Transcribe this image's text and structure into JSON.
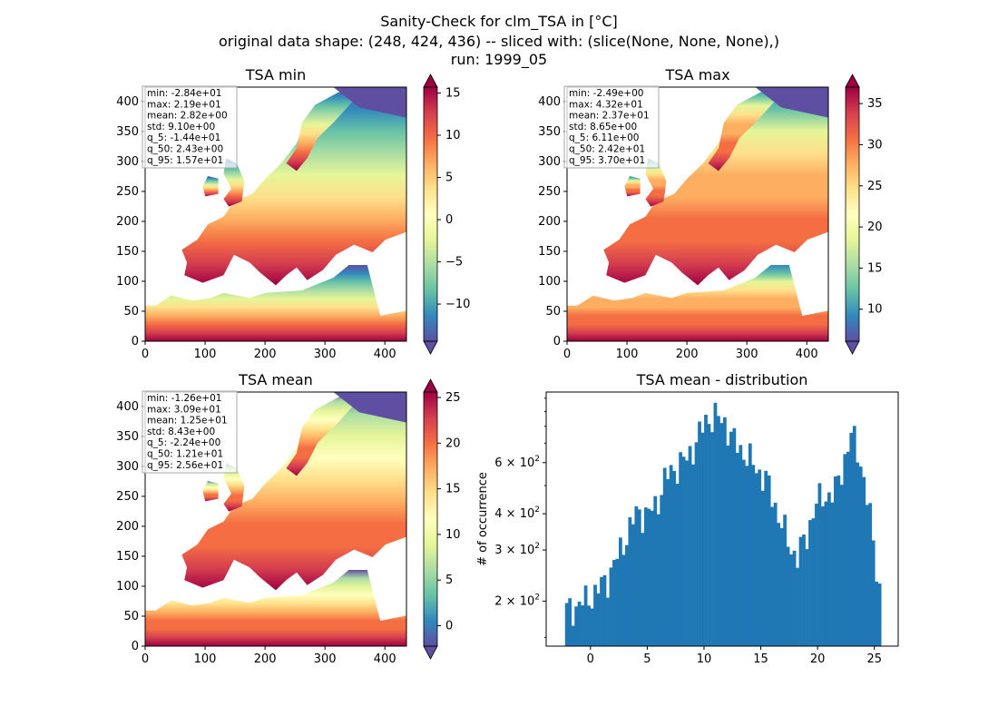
{
  "figure": {
    "title_lines": [
      "Sanity-Check for clm_TSA in [°C]",
      "original data shape: (248, 424, 436) -- sliced with: (slice(None, None, None),)",
      "run: 1999_05"
    ]
  },
  "colors": {
    "cmap": "Spectral_r",
    "hist_bar": "#1f77b4",
    "water_high_latitude": "#5e4fa2"
  },
  "chart_data": [
    {
      "type": "heatmap",
      "title": "TSA min",
      "xlim": [
        0,
        436
      ],
      "ylim": [
        0,
        424
      ],
      "xticks": [
        "0",
        "100",
        "200",
        "300",
        "400"
      ],
      "yticks": [
        "0",
        "50",
        "100",
        "150",
        "200",
        "250",
        "300",
        "350",
        "400"
      ],
      "colorbar": {
        "vmin": -14.4,
        "vmax": 15.7,
        "ticks": [
          "15",
          "10",
          "5",
          "0",
          "−5",
          "−10"
        ],
        "extend": "both"
      },
      "stats": [
        "min: -2.84e+01",
        "max: 2.19e+01",
        "mean: 2.82e+00",
        "std: 9.10e+00",
        "q_5: -1.44e+01",
        "q_50: 2.43e+00",
        "q_95: 1.57e+01"
      ]
    },
    {
      "type": "heatmap",
      "title": "TSA max",
      "xlim": [
        0,
        436
      ],
      "ylim": [
        0,
        424
      ],
      "xticks": [
        "0",
        "100",
        "200",
        "300",
        "400"
      ],
      "yticks": [
        "0",
        "50",
        "100",
        "150",
        "200",
        "250",
        "300",
        "350",
        "400"
      ],
      "colorbar": {
        "vmin": 6.11,
        "vmax": 37.0,
        "ticks": [
          "35",
          "30",
          "25",
          "20",
          "15",
          "10"
        ],
        "extend": "both"
      },
      "stats": [
        "min: -2.49e+00",
        "max: 4.32e+01",
        "mean: 2.37e+01",
        "std: 8.65e+00",
        "q_5: 6.11e+00",
        "q_50: 2.42e+01",
        "q_95: 3.70e+01"
      ]
    },
    {
      "type": "heatmap",
      "title": "TSA mean",
      "xlim": [
        0,
        436
      ],
      "ylim": [
        0,
        424
      ],
      "xticks": [
        "0",
        "100",
        "200",
        "300",
        "400"
      ],
      "yticks": [
        "0",
        "50",
        "100",
        "150",
        "200",
        "250",
        "300",
        "350",
        "400"
      ],
      "colorbar": {
        "vmin": -2.24,
        "vmax": 25.6,
        "ticks": [
          "25",
          "20",
          "15",
          "10",
          "5",
          "0"
        ],
        "extend": "both"
      },
      "stats": [
        "min: -1.26e+01",
        "max: 3.09e+01",
        "mean: 1.25e+01",
        "std: 8.43e+00",
        "q_5: -2.24e+00",
        "q_50: 1.21e+01",
        "q_95: 2.56e+01"
      ]
    },
    {
      "type": "bar",
      "title": "TSA mean - distribution",
      "ylabel": "# of occurrence",
      "yscale": "log",
      "xlim": [
        -3.9,
        27.1
      ],
      "ylim": [
        140,
        1050
      ],
      "xticks": [
        0,
        5,
        10,
        15,
        20,
        25
      ],
      "xtick_labels": [
        "0",
        "5",
        "10",
        "15",
        "20",
        "25"
      ],
      "yticks": [
        200,
        300,
        400,
        600
      ],
      "ytick_bases": [
        "2",
        "3",
        "4",
        "6"
      ],
      "ytick_power": "10",
      "ytick_exponent": "2",
      "bin_range": [
        -2.24,
        25.6
      ],
      "n_bins": 100,
      "profile": [
        [
          -2.24,
          185
        ],
        [
          -1.5,
          190
        ],
        [
          -0.5,
          200
        ],
        [
          0.5,
          215
        ],
        [
          1.5,
          240
        ],
        [
          2.5,
          290
        ],
        [
          3.5,
          360
        ],
        [
          4.2,
          410
        ],
        [
          5.0,
          395
        ],
        [
          5.8,
          430
        ],
        [
          6.6,
          530
        ],
        [
          7.5,
          580
        ],
        [
          8.5,
          620
        ],
        [
          9.5,
          730
        ],
        [
          10.2,
          850
        ],
        [
          11.0,
          860
        ],
        [
          11.8,
          835
        ],
        [
          12.5,
          720
        ],
        [
          13.5,
          650
        ],
        [
          14.5,
          580
        ],
        [
          15.5,
          520
        ],
        [
          16.5,
          400
        ],
        [
          17.5,
          310
        ],
        [
          18.2,
          285
        ],
        [
          19.0,
          330
        ],
        [
          19.8,
          430
        ],
        [
          20.5,
          460
        ],
        [
          21.5,
          470
        ],
        [
          22.3,
          600
        ],
        [
          23.0,
          750
        ],
        [
          23.6,
          660
        ],
        [
          24.2,
          480
        ],
        [
          24.8,
          350
        ],
        [
          25.3,
          240
        ],
        [
          25.6,
          200
        ]
      ]
    }
  ]
}
